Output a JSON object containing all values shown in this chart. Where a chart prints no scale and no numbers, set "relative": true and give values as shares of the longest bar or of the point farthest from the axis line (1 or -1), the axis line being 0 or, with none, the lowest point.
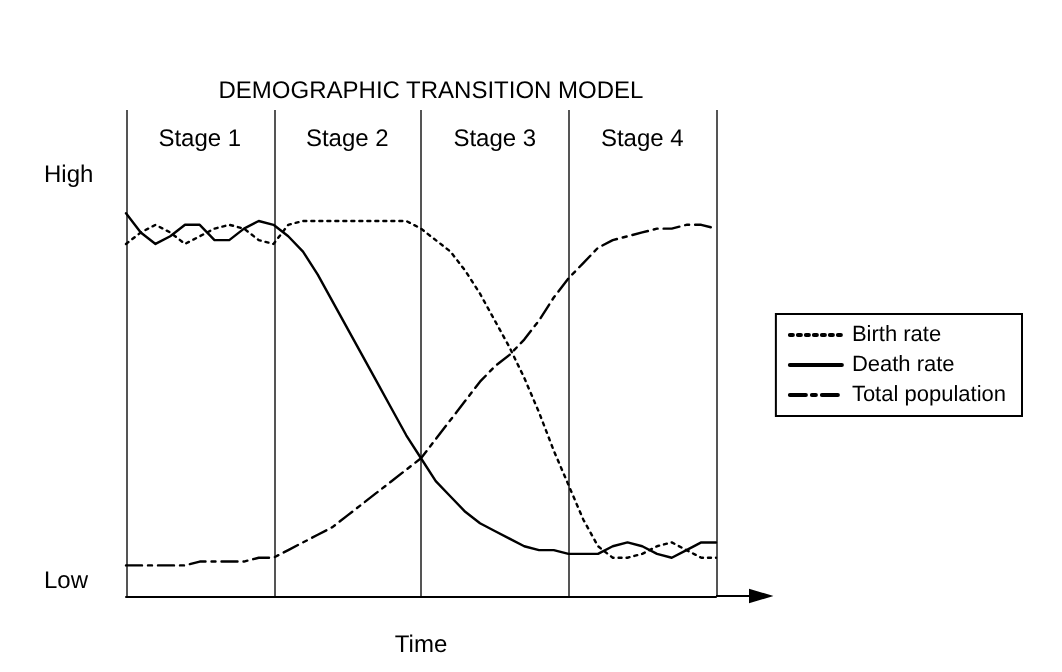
{
  "chart_data": {
    "type": "line",
    "title": "DEMOGRAPHIC TRANSITION MODEL",
    "xlabel": "Time",
    "relative": true,
    "legend": "right",
    "grid": "x",
    "annotations": [
      "High",
      "Low",
      "Stage 1",
      "Stage 2",
      "Stage 3",
      "Stage 4"
    ],
    "categories": [
      null,
      null,
      null,
      null,
      null,
      null,
      null,
      null,
      null,
      null,
      null,
      null,
      null,
      null,
      null,
      null,
      null,
      null,
      null,
      null,
      null,
      null,
      null,
      null,
      null,
      null,
      null,
      null,
      null,
      null,
      null,
      null,
      null,
      null,
      null,
      null,
      null,
      null,
      null,
      null,
      null
    ],
    "series": [
      {
        "name": "Birth rate",
        "color": "#000000",
        "line_style": "dotted",
        "values": [
          0.92,
          0.95,
          0.97,
          0.95,
          0.92,
          0.94,
          0.96,
          0.97,
          0.96,
          0.93,
          0.92,
          0.97,
          0.98,
          0.98,
          0.98,
          0.98,
          0.98,
          0.98,
          0.98,
          0.98,
          0.96,
          0.93,
          0.9,
          0.85,
          0.79,
          0.72,
          0.65,
          0.57,
          0.48,
          0.38,
          0.29,
          0.2,
          0.13,
          0.1,
          0.1,
          0.11,
          0.13,
          0.14,
          0.12,
          0.1,
          0.1
        ]
      },
      {
        "name": "Death rate",
        "color": "#000000",
        "line_style": "solid",
        "values": [
          1.0,
          0.95,
          0.92,
          0.94,
          0.97,
          0.97,
          0.93,
          0.93,
          0.96,
          0.98,
          0.97,
          0.94,
          0.9,
          0.84,
          0.77,
          0.7,
          0.63,
          0.56,
          0.49,
          0.42,
          0.36,
          0.3,
          0.26,
          0.22,
          0.19,
          0.17,
          0.15,
          0.13,
          0.12,
          0.12,
          0.11,
          0.11,
          0.11,
          0.13,
          0.14,
          0.13,
          0.11,
          0.1,
          0.12,
          0.14,
          0.14
        ]
      },
      {
        "name": "Total population",
        "color": "#000000",
        "line_style": "dashed",
        "values": [
          0.08,
          0.08,
          0.08,
          0.08,
          0.08,
          0.09,
          0.09,
          0.09,
          0.09,
          0.1,
          0.1,
          0.12,
          0.14,
          0.16,
          0.18,
          0.21,
          0.24,
          0.27,
          0.3,
          0.33,
          0.36,
          0.41,
          0.46,
          0.51,
          0.56,
          0.6,
          0.63,
          0.67,
          0.72,
          0.78,
          0.83,
          0.87,
          0.91,
          0.93,
          0.94,
          0.95,
          0.96,
          0.96,
          0.97,
          0.97,
          0.96
        ]
      }
    ]
  }
}
